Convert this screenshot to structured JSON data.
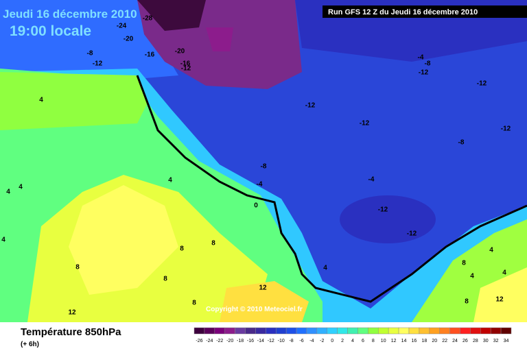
{
  "header": {
    "date": "Jeudi 16 décembre 2010",
    "time": "19:00 locale",
    "run": "Run GFS 12 Z du Jeudi 16 décembre 2010"
  },
  "copyright": "Copyright © 2010 Meteociel.fr",
  "legend": {
    "title": "Température 850hPa",
    "step": "(+ 6h)",
    "ticks": [
      -26,
      -24,
      -22,
      -20,
      -18,
      -16,
      -14,
      -12,
      -10,
      -8,
      -6,
      -4,
      -2,
      0,
      2,
      4,
      6,
      8,
      10,
      12,
      14,
      16,
      18,
      20,
      22,
      24,
      26,
      28,
      30,
      32,
      34
    ],
    "colors": [
      "#3d003d",
      "#5a005a",
      "#7a007a",
      "#8c1c8c",
      "#6a3aa0",
      "#4a2a8a",
      "#3a2aa0",
      "#2a30c0",
      "#2040d0",
      "#1e50e8",
      "#2070ff",
      "#3090ff",
      "#30b0ff",
      "#30d0ff",
      "#30e8e8",
      "#40f0b0",
      "#60ff80",
      "#90ff40",
      "#c0ff30",
      "#e8ff40",
      "#ffff60",
      "#ffe040",
      "#ffc030",
      "#ffa020",
      "#ff8020",
      "#ff5020",
      "#ff2020",
      "#e01010",
      "#c00000",
      "#900000",
      "#600000"
    ]
  },
  "map_labels": [
    -28,
    -24,
    -20,
    -20,
    -16,
    -16,
    -12,
    -8,
    -12,
    -12,
    -12,
    -12,
    -12,
    -8,
    -8,
    -4,
    -4,
    -12,
    -12,
    -4,
    -8,
    -12,
    0,
    4,
    4,
    4,
    4,
    4,
    8,
    8,
    8,
    8,
    8,
    12,
    12,
    4,
    4,
    4,
    4,
    12,
    8,
    8
  ]
}
